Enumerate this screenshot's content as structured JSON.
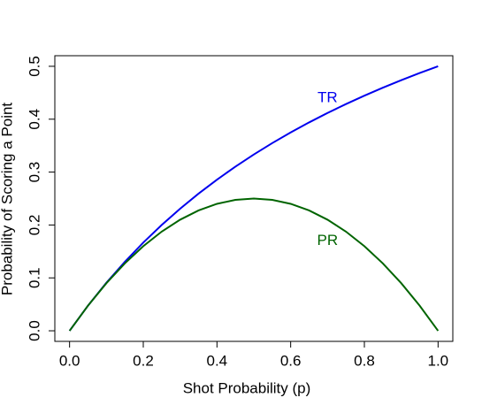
{
  "chart_data": {
    "type": "line",
    "xlabel": "Shot Probability (p)",
    "ylabel": "Probability of Scoring a Point",
    "x": [
      0,
      0.05,
      0.1,
      0.15,
      0.2,
      0.25,
      0.3,
      0.35,
      0.4,
      0.45,
      0.5,
      0.55,
      0.6,
      0.65,
      0.7,
      0.75,
      0.8,
      0.85,
      0.9,
      0.95,
      1
    ],
    "series": [
      {
        "name": "TR",
        "color": "#0000ee",
        "values": [
          0,
          0.0476,
          0.0909,
          0.1304,
          0.1667,
          0.2,
          0.2308,
          0.2593,
          0.2857,
          0.3103,
          0.3333,
          0.3548,
          0.375,
          0.3939,
          0.4118,
          0.4286,
          0.4444,
          0.4595,
          0.4737,
          0.4872,
          0.5
        ]
      },
      {
        "name": "PR",
        "color": "#006400",
        "values": [
          0,
          0.0475,
          0.09,
          0.1275,
          0.16,
          0.1875,
          0.21,
          0.2275,
          0.24,
          0.2475,
          0.25,
          0.2475,
          0.24,
          0.2275,
          0.21,
          0.1875,
          0.16,
          0.1275,
          0.09,
          0.0475,
          0
        ]
      }
    ],
    "annotations": [
      {
        "text": "TR",
        "x": 0.7,
        "y": 0.44,
        "color": "#0000ee"
      },
      {
        "text": "PR",
        "x": 0.7,
        "y": 0.17,
        "color": "#006400"
      }
    ],
    "xlim": [
      -0.04,
      1.04
    ],
    "ylim": [
      -0.02,
      0.52
    ],
    "xticks": [
      {
        "value": 0,
        "label": "0.0"
      },
      0.2,
      0.4,
      0.6,
      0.8,
      {
        "value": 1,
        "label": "1.0"
      }
    ],
    "yticks": [
      {
        "value": 0,
        "label": "0.0"
      },
      0.1,
      0.2,
      0.3,
      0.4,
      0.5
    ]
  }
}
